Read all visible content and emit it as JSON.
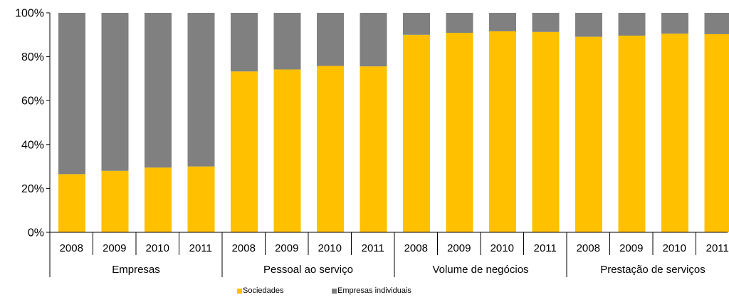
{
  "chart_data": {
    "type": "bar",
    "stacked": true,
    "percent_stacked": true,
    "groups": [
      {
        "label": "Empresas",
        "years": [
          "2008",
          "2009",
          "2010",
          "2011"
        ]
      },
      {
        "label": "Pessoal ao serviço",
        "years": [
          "2008",
          "2009",
          "2010",
          "2011"
        ]
      },
      {
        "label": "Volume de negócios",
        "years": [
          "2008",
          "2009",
          "2010",
          "2011"
        ]
      },
      {
        "label": "Prestação de serviços",
        "years": [
          "2008",
          "2009",
          "2010",
          "2011"
        ]
      }
    ],
    "series": [
      {
        "name": "Sociedades",
        "color": "#FFC000",
        "values": [
          26.5,
          28,
          29.5,
          30,
          73.3,
          74.2,
          75.8,
          75.6,
          90,
          90.9,
          91.6,
          91.3,
          89.1,
          89.6,
          90.5,
          90.3
        ]
      },
      {
        "name": "Empresas individuais",
        "color": "#808080",
        "values": [
          73.5,
          72,
          70.5,
          70,
          26.7,
          25.8,
          24.2,
          24.4,
          10,
          9.1,
          8.4,
          8.7,
          10.9,
          10.4,
          9.5,
          9.7
        ]
      }
    ],
    "y_ticks": [
      "0%",
      "20%",
      "40%",
      "60%",
      "80%",
      "100%"
    ],
    "ylim": [
      0,
      100
    ],
    "grid": false,
    "legend_position": "bottom"
  }
}
